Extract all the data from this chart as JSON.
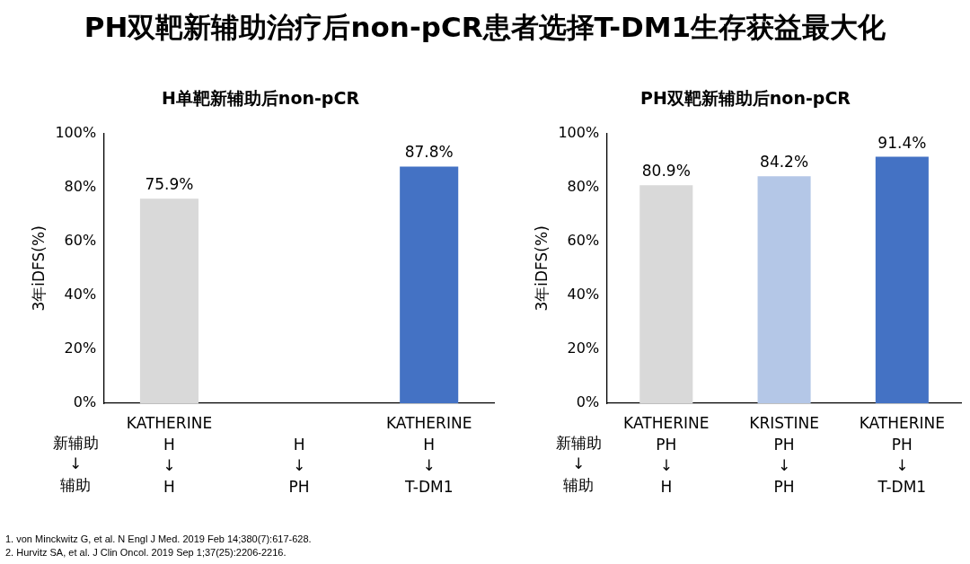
{
  "chart_data": [
    {
      "type": "other",
      "title": "PH双靶新辅助治疗后non-pCR患者选择T-DM1生存获益最大化",
      "annotations": [
        "1.    von Minckwitz G, et al. N Engl J Med. 2019 Feb 14;380(7):617-628.",
        "2.    Hurvitz SA, et al. J Clin Oncol. 2019 Sep 1;37(25):2206-2216."
      ]
    },
    {
      "type": "bar",
      "title": "H单靶新辅助后non-pCR",
      "ylabel": "3年iDFS(%)",
      "categories": [
        "KATHERINE\nH\n↓\nH",
        "\nH\n↓\nPH",
        "KATHERINE\nH\n↓\nT-DM1"
      ],
      "values": [
        75.9,
        null,
        87.8
      ],
      "colors": [
        "#d9d9d9",
        "#d9d9d9",
        "#4472c4"
      ],
      "value_labels": [
        "75.9%",
        null,
        "87.8%"
      ],
      "ylim": [
        0,
        100
      ],
      "yticks": [
        {
          "value": 0,
          "label": "0%"
        },
        {
          "value": 20,
          "label": "20%"
        },
        {
          "value": 40,
          "label": "40%"
        },
        {
          "value": 60,
          "label": "60%"
        },
        {
          "value": 80,
          "label": "80%"
        },
        {
          "value": 100,
          "label": "100%"
        }
      ],
      "grid": false,
      "legend": false,
      "annotations": [
        "新辅助",
        "↓",
        "辅助"
      ]
    },
    {
      "type": "bar",
      "title": "PH双靶新辅助后non-pCR",
      "ylabel": "3年iDFS(%)",
      "categories": [
        "KATHERINE\nPH\n↓\nH",
        "KRISTINE\nPH\n↓\nPH",
        "KATHERINE\nPH\n↓\nT-DM1"
      ],
      "values": [
        80.9,
        84.2,
        91.4
      ],
      "colors": [
        "#d9d9d9",
        "#b4c7e7",
        "#4472c4"
      ],
      "value_labels": [
        "80.9%",
        "84.2%",
        "91.4%"
      ],
      "ylim": [
        0,
        100
      ],
      "yticks": [
        {
          "value": 0,
          "label": "0%"
        },
        {
          "value": 20,
          "label": "20%"
        },
        {
          "value": 40,
          "label": "40%"
        },
        {
          "value": 60,
          "label": "60%"
        },
        {
          "value": 80,
          "label": "80%"
        },
        {
          "value": 100,
          "label": "100%"
        }
      ],
      "grid": false,
      "legend": false,
      "annotations": [
        "新辅助",
        "↓",
        "辅助"
      ]
    }
  ]
}
